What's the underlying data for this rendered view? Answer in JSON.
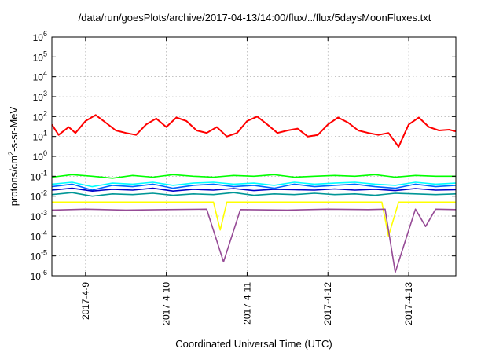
{
  "chart_data": {
    "type": "line",
    "title": "/data/run/goesPlots/archive/2017-04-13/14:00/flux/../flux/5daysMoonFluxes.txt",
    "xlabel": "Coordinated Universal Time (UTC)",
    "ylabel": "protons/cm2-s-sr-MeV",
    "ylabel_parts": {
      "pre": "protons/cm",
      "sup": "2",
      "post": "-s-sr-MeV"
    },
    "yscale": "log",
    "ylim": [
      1e-06,
      1000000.0
    ],
    "y_ticks": [
      {
        "base": "10",
        "exp": "-6",
        "value": 1e-06
      },
      {
        "base": "10",
        "exp": "-5",
        "value": 1e-05
      },
      {
        "base": "10",
        "exp": "-4",
        "value": 0.0001
      },
      {
        "base": "10",
        "exp": "-3",
        "value": 0.001
      },
      {
        "base": "10",
        "exp": "-2",
        "value": 0.01
      },
      {
        "base": "10",
        "exp": "-1",
        "value": 0.1
      },
      {
        "base": "10",
        "exp": "0",
        "value": 1
      },
      {
        "base": "10",
        "exp": "1",
        "value": 10
      },
      {
        "base": "10",
        "exp": "2",
        "value": 100
      },
      {
        "base": "10",
        "exp": "3",
        "value": 1000
      },
      {
        "base": "10",
        "exp": "4",
        "value": 10000
      },
      {
        "base": "10",
        "exp": "5",
        "value": 100000
      },
      {
        "base": "10",
        "exp": "6",
        "value": 1000000
      }
    ],
    "xlim": [
      "2017-04-08T14:00",
      "2017-04-13T14:00"
    ],
    "x_ticks": [
      "2017-4-9",
      "2017-4-10",
      "2017-4-11",
      "2017-4-12",
      "2017-4-13"
    ],
    "x_tick_dates": [
      "2017-04-09T00:00",
      "2017-04-10T00:00",
      "2017-04-11T00:00",
      "2017-04-12T00:00",
      "2017-04-13T00:00"
    ],
    "grid": true,
    "series": [
      {
        "color": "#ff0000",
        "x": [
          "2017-04-08T14:00",
          "2017-04-08T16:00",
          "2017-04-08T19:00",
          "2017-04-08T21:00",
          "2017-04-09T00:00",
          "2017-04-09T03:00",
          "2017-04-09T06:00",
          "2017-04-09T09:00",
          "2017-04-09T12:00",
          "2017-04-09T15:00",
          "2017-04-09T18:00",
          "2017-04-09T21:00",
          "2017-04-10T00:00",
          "2017-04-10T03:00",
          "2017-04-10T06:00",
          "2017-04-10T09:00",
          "2017-04-10T12:00",
          "2017-04-10T15:00",
          "2017-04-10T18:00",
          "2017-04-10T21:00",
          "2017-04-11T00:00",
          "2017-04-11T03:00",
          "2017-04-11T06:00",
          "2017-04-11T09:00",
          "2017-04-11T12:00",
          "2017-04-11T15:00",
          "2017-04-11T18:00",
          "2017-04-11T21:00",
          "2017-04-12T00:00",
          "2017-04-12T03:00",
          "2017-04-12T06:00",
          "2017-04-12T09:00",
          "2017-04-12T12:00",
          "2017-04-12T15:00",
          "2017-04-12T18:00",
          "2017-04-12T21:00",
          "2017-04-13T00:00",
          "2017-04-13T03:00",
          "2017-04-13T06:00",
          "2017-04-13T09:00",
          "2017-04-13T12:00",
          "2017-04-13T14:00"
        ],
        "y": [
          40,
          12,
          30,
          15,
          60,
          120,
          50,
          20,
          15,
          12,
          40,
          80,
          30,
          90,
          60,
          20,
          15,
          30,
          10,
          15,
          60,
          100,
          40,
          15,
          20,
          25,
          10,
          12,
          40,
          90,
          50,
          20,
          15,
          12,
          15,
          3,
          40,
          90,
          30,
          20,
          22,
          18
        ]
      },
      {
        "color": "#00ff00",
        "x": [
          "2017-04-08T14:00",
          "2017-04-08T20:00",
          "2017-04-09T02:00",
          "2017-04-09T08:00",
          "2017-04-09T14:00",
          "2017-04-09T20:00",
          "2017-04-10T02:00",
          "2017-04-10T08:00",
          "2017-04-10T14:00",
          "2017-04-10T20:00",
          "2017-04-11T02:00",
          "2017-04-11T08:00",
          "2017-04-11T14:00",
          "2017-04-11T20:00",
          "2017-04-12T02:00",
          "2017-04-12T08:00",
          "2017-04-12T14:00",
          "2017-04-12T20:00",
          "2017-04-13T02:00",
          "2017-04-13T08:00",
          "2017-04-13T14:00"
        ],
        "y": [
          0.09,
          0.12,
          0.1,
          0.08,
          0.11,
          0.09,
          0.12,
          0.1,
          0.09,
          0.11,
          0.1,
          0.12,
          0.09,
          0.1,
          0.11,
          0.1,
          0.12,
          0.09,
          0.11,
          0.1,
          0.1
        ]
      },
      {
        "color": "#00ffff",
        "x": [
          "2017-04-08T14:00",
          "2017-04-08T20:00",
          "2017-04-09T02:00",
          "2017-04-09T08:00",
          "2017-04-09T14:00",
          "2017-04-09T20:00",
          "2017-04-10T02:00",
          "2017-04-10T08:00",
          "2017-04-10T14:00",
          "2017-04-10T20:00",
          "2017-04-11T02:00",
          "2017-04-11T08:00",
          "2017-04-11T14:00",
          "2017-04-11T20:00",
          "2017-04-12T02:00",
          "2017-04-12T08:00",
          "2017-04-12T14:00",
          "2017-04-12T20:00",
          "2017-04-13T02:00",
          "2017-04-13T08:00",
          "2017-04-13T14:00"
        ],
        "y": [
          0.04,
          0.05,
          0.03,
          0.045,
          0.04,
          0.05,
          0.035,
          0.045,
          0.05,
          0.04,
          0.045,
          0.035,
          0.05,
          0.04,
          0.045,
          0.05,
          0.04,
          0.035,
          0.05,
          0.04,
          0.045
        ]
      },
      {
        "color": "#0064ff",
        "x": [
          "2017-04-08T14:00",
          "2017-04-08T20:00",
          "2017-04-09T02:00",
          "2017-04-09T08:00",
          "2017-04-09T14:00",
          "2017-04-09T20:00",
          "2017-04-10T02:00",
          "2017-04-10T08:00",
          "2017-04-10T14:00",
          "2017-04-10T20:00",
          "2017-04-11T02:00",
          "2017-04-11T08:00",
          "2017-04-11T14:00",
          "2017-04-11T20:00",
          "2017-04-12T02:00",
          "2017-04-12T08:00",
          "2017-04-12T14:00",
          "2017-04-12T20:00",
          "2017-04-13T02:00",
          "2017-04-13T08:00",
          "2017-04-13T14:00"
        ],
        "y": [
          0.03,
          0.04,
          0.02,
          0.035,
          0.03,
          0.04,
          0.025,
          0.035,
          0.04,
          0.03,
          0.035,
          0.025,
          0.04,
          0.03,
          0.035,
          0.04,
          0.03,
          0.025,
          0.04,
          0.03,
          0.035
        ]
      },
      {
        "color": "#0000c8",
        "x": [
          "2017-04-08T14:00",
          "2017-04-08T20:00",
          "2017-04-09T02:00",
          "2017-04-09T08:00",
          "2017-04-09T14:00",
          "2017-04-09T20:00",
          "2017-04-10T02:00",
          "2017-04-10T08:00",
          "2017-04-10T14:00",
          "2017-04-10T20:00",
          "2017-04-11T02:00",
          "2017-04-11T08:00",
          "2017-04-11T14:00",
          "2017-04-11T20:00",
          "2017-04-12T02:00",
          "2017-04-12T08:00",
          "2017-04-12T14:00",
          "2017-04-12T20:00",
          "2017-04-13T02:00",
          "2017-04-13T08:00",
          "2017-04-13T14:00"
        ],
        "y": [
          0.02,
          0.025,
          0.018,
          0.022,
          0.02,
          0.025,
          0.018,
          0.022,
          0.02,
          0.024,
          0.019,
          0.022,
          0.021,
          0.02,
          0.023,
          0.02,
          0.022,
          0.019,
          0.024,
          0.02,
          0.021
        ]
      },
      {
        "color": "#009696",
        "x": [
          "2017-04-08T14:00",
          "2017-04-08T20:00",
          "2017-04-09T02:00",
          "2017-04-09T08:00",
          "2017-04-09T14:00",
          "2017-04-09T20:00",
          "2017-04-10T02:00",
          "2017-04-10T08:00",
          "2017-04-10T14:00",
          "2017-04-10T20:00",
          "2017-04-11T02:00",
          "2017-04-11T08:00",
          "2017-04-11T14:00",
          "2017-04-11T20:00",
          "2017-04-12T02:00",
          "2017-04-12T08:00",
          "2017-04-12T14:00",
          "2017-04-12T20:00",
          "2017-04-13T02:00",
          "2017-04-13T08:00",
          "2017-04-13T14:00"
        ],
        "y": [
          0.012,
          0.015,
          0.01,
          0.013,
          0.012,
          0.014,
          0.011,
          0.013,
          0.012,
          0.015,
          0.011,
          0.013,
          0.012,
          0.014,
          0.012,
          0.013,
          0.011,
          0.014,
          0.013,
          0.012,
          0.013
        ]
      },
      {
        "color": "#ffff00",
        "x": [
          "2017-04-08T14:00",
          "2017-04-09T02:00",
          "2017-04-09T14:00",
          "2017-04-10T02:00",
          "2017-04-10T14:00",
          "2017-04-10T16:00",
          "2017-04-10T18:00",
          "2017-04-11T02:00",
          "2017-04-11T14:00",
          "2017-04-12T02:00",
          "2017-04-12T16:00",
          "2017-04-12T18:00",
          "2017-04-12T21:00",
          "2017-04-13T02:00",
          "2017-04-13T14:00"
        ],
        "y": [
          0.005,
          0.005,
          0.005,
          0.005,
          0.005,
          0.0002,
          0.005,
          0.005,
          0.005,
          0.005,
          0.005,
          0.0001,
          0.005,
          0.005,
          0.005
        ]
      },
      {
        "color": "#964b96",
        "x": [
          "2017-04-08T14:00",
          "2017-04-09T00:00",
          "2017-04-09T12:00",
          "2017-04-10T00:00",
          "2017-04-10T12:00",
          "2017-04-10T17:00",
          "2017-04-10T22:00",
          "2017-04-11T12:00",
          "2017-04-12T00:00",
          "2017-04-12T12:00",
          "2017-04-12T17:00",
          "2017-04-12T20:00",
          "2017-04-13T02:00",
          "2017-04-13T05:00",
          "2017-04-13T08:00",
          "2017-04-13T14:00"
        ],
        "y": [
          0.002,
          0.0022,
          0.002,
          0.0021,
          0.0022,
          5e-06,
          0.0021,
          0.002,
          0.0022,
          0.0021,
          0.0022,
          1.5e-06,
          0.0022,
          0.0003,
          0.0022,
          0.0021
        ]
      }
    ]
  }
}
